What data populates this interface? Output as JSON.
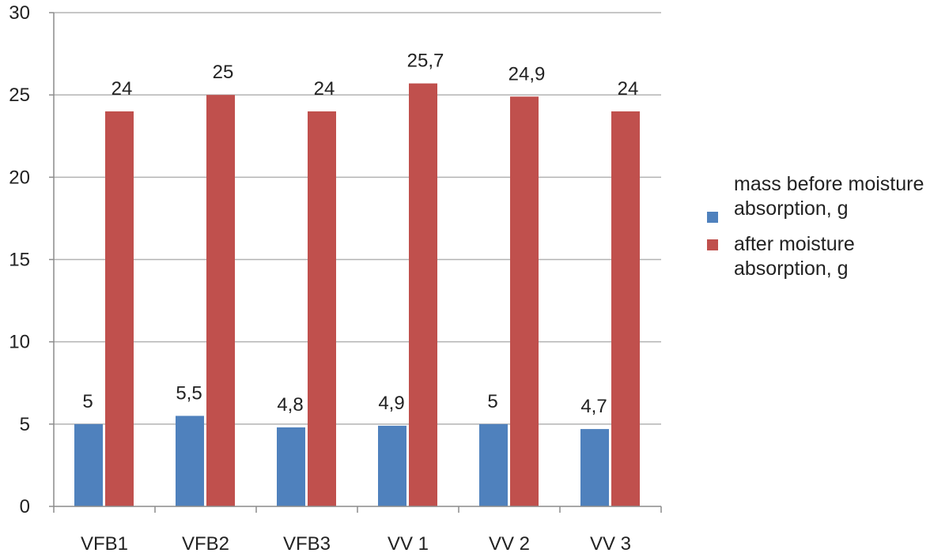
{
  "chart_data": {
    "type": "bar",
    "categories": [
      "VFB1",
      "VFB2",
      "VFB3",
      "VV 1",
      "VV 2",
      "VV 3"
    ],
    "series": [
      {
        "name": "mass before moisture absorption, g",
        "values": [
          5,
          5.5,
          4.8,
          4.9,
          5,
          4.7
        ],
        "labels": [
          "5",
          "5,5",
          "4,8",
          "4,9",
          "5",
          "4,7"
        ],
        "color": "#4f81bd"
      },
      {
        "name": "after moisture absorption, g",
        "values": [
          24,
          25,
          24,
          25.7,
          24.9,
          24
        ],
        "labels": [
          "24",
          "25",
          "24",
          "25,7",
          "24,9",
          "24"
        ],
        "color": "#c0504d"
      }
    ],
    "yticks": [
      "0",
      "5",
      "10",
      "15",
      "20",
      "25",
      "30"
    ],
    "ylim": [
      0,
      30
    ],
    "grid": true,
    "legend_position": "right",
    "title": "",
    "xlabel": "",
    "ylabel": ""
  }
}
